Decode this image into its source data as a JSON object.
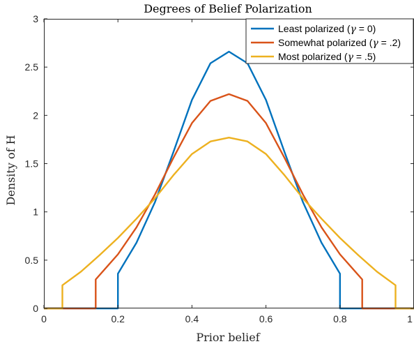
{
  "chart_data": {
    "type": "line",
    "title": "Degrees of Belief Polarization",
    "xlabel": "Prior belief",
    "ylabel": "Density of H",
    "xlim": [
      0,
      1
    ],
    "ylim": [
      0,
      3
    ],
    "x_ticks": [
      0,
      0.2,
      0.4,
      0.6,
      0.8,
      1
    ],
    "x_tick_labels": [
      "0",
      "0.2",
      "0.4",
      "0.6",
      "0.8",
      "1"
    ],
    "y_ticks": [
      0,
      0.5,
      1,
      1.5,
      2,
      2.5,
      3
    ],
    "y_tick_labels": [
      "0",
      "0.5",
      "1",
      "1.5",
      "2",
      "2.5",
      "3"
    ],
    "grid": false,
    "legend_position": "top-right",
    "series": [
      {
        "name": "Least polarized (γ = 0)",
        "legend_prefix": "Least polarized (",
        "legend_symbol": "γ",
        "legend_suffix": " = 0)",
        "color": "#0072BD",
        "x": [
          0,
          0.2,
          0.2,
          0.25,
          0.3,
          0.35,
          0.4,
          0.45,
          0.5,
          0.55,
          0.6,
          0.65,
          0.7,
          0.75,
          0.8,
          0.8,
          1
        ],
        "y": [
          0,
          0,
          0.36,
          0.68,
          1.1,
          1.62,
          2.16,
          2.54,
          2.66,
          2.54,
          2.16,
          1.62,
          1.1,
          0.68,
          0.36,
          0,
          0
        ]
      },
      {
        "name": "Somewhat polarized (γ = .2)",
        "legend_prefix": "Somewhat polarized (",
        "legend_symbol": "γ",
        "legend_suffix": " = .2)",
        "color": "#D95319",
        "x": [
          0,
          0.14,
          0.14,
          0.2,
          0.25,
          0.3,
          0.35,
          0.4,
          0.45,
          0.5,
          0.55,
          0.6,
          0.65,
          0.7,
          0.75,
          0.8,
          0.86,
          0.86,
          1
        ],
        "y": [
          0,
          0,
          0.3,
          0.56,
          0.84,
          1.18,
          1.56,
          1.92,
          2.15,
          2.22,
          2.15,
          1.92,
          1.56,
          1.18,
          0.84,
          0.56,
          0.3,
          0,
          0
        ]
      },
      {
        "name": "Most polarized (γ = .5)",
        "legend_prefix": "Most polarized (",
        "legend_symbol": "γ",
        "legend_suffix": " = .5)",
        "color": "#EDB120",
        "x": [
          0,
          0.05,
          0.05,
          0.1,
          0.15,
          0.2,
          0.25,
          0.3,
          0.35,
          0.4,
          0.45,
          0.5,
          0.55,
          0.6,
          0.65,
          0.7,
          0.75,
          0.8,
          0.85,
          0.9,
          0.95,
          0.95,
          1
        ],
        "y": [
          0,
          0,
          0.24,
          0.38,
          0.55,
          0.73,
          0.93,
          1.14,
          1.38,
          1.6,
          1.73,
          1.77,
          1.73,
          1.6,
          1.38,
          1.14,
          0.93,
          0.73,
          0.55,
          0.38,
          0.24,
          0,
          0
        ]
      }
    ]
  }
}
